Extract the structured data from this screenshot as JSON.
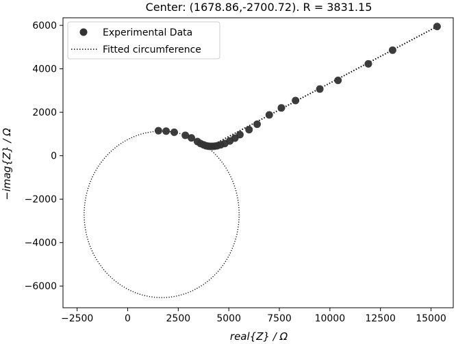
{
  "chart_data": {
    "type": "scatter",
    "title": "Center: (1678.86,-2700.72). R = 3831.15",
    "xlabel": "real{Z} / Ω",
    "ylabel": "−imag{Z} / Ω",
    "xlim": [
      -3200,
      16100
    ],
    "ylim": [
      -7000,
      6350
    ],
    "xticks": [
      -2500,
      0,
      2500,
      5000,
      7500,
      10000,
      12500,
      15000
    ],
    "xtick_labels": [
      "−2500",
      "0",
      "2500",
      "5000",
      "7500",
      "10000",
      "12500",
      "15000"
    ],
    "yticks": [
      -6000,
      -4000,
      -2000,
      0,
      2000,
      4000,
      6000
    ],
    "ytick_labels": [
      "−6000",
      "−4000",
      "−2000",
      "0",
      "2000",
      "4000",
      "6000"
    ],
    "grid": false,
    "legend_position": "top-left",
    "colors": {
      "points": "#333333",
      "fit_line": "#000000",
      "axes": "#000000"
    },
    "series": [
      {
        "name": "Experimental Data",
        "kind": "scatter",
        "x": [
          1520,
          1900,
          2300,
          2850,
          3150,
          3450,
          3600,
          3750,
          3870,
          3980,
          4080,
          4180,
          4300,
          4430,
          4600,
          4800,
          5050,
          5300,
          5550,
          6000,
          6400,
          7000,
          7600,
          8300,
          9500,
          10400,
          11900,
          13100,
          15300
        ],
        "y": [
          1150,
          1130,
          1080,
          940,
          820,
          650,
          560,
          500,
          460,
          440,
          430,
          430,
          440,
          460,
          500,
          560,
          680,
          810,
          970,
          1200,
          1450,
          1880,
          2200,
          2540,
          3070,
          3470,
          4230,
          4860,
          5950
        ]
      },
      {
        "name": "Fitted circumference",
        "kind": "line",
        "style": "dotted",
        "circle": {
          "center": [
            1678.86,
            -2700.72
          ],
          "radius": 3831.15
        },
        "tail_x": [
          4100,
          15300
        ],
        "tail_y": [
          440,
          5950
        ]
      }
    ]
  }
}
